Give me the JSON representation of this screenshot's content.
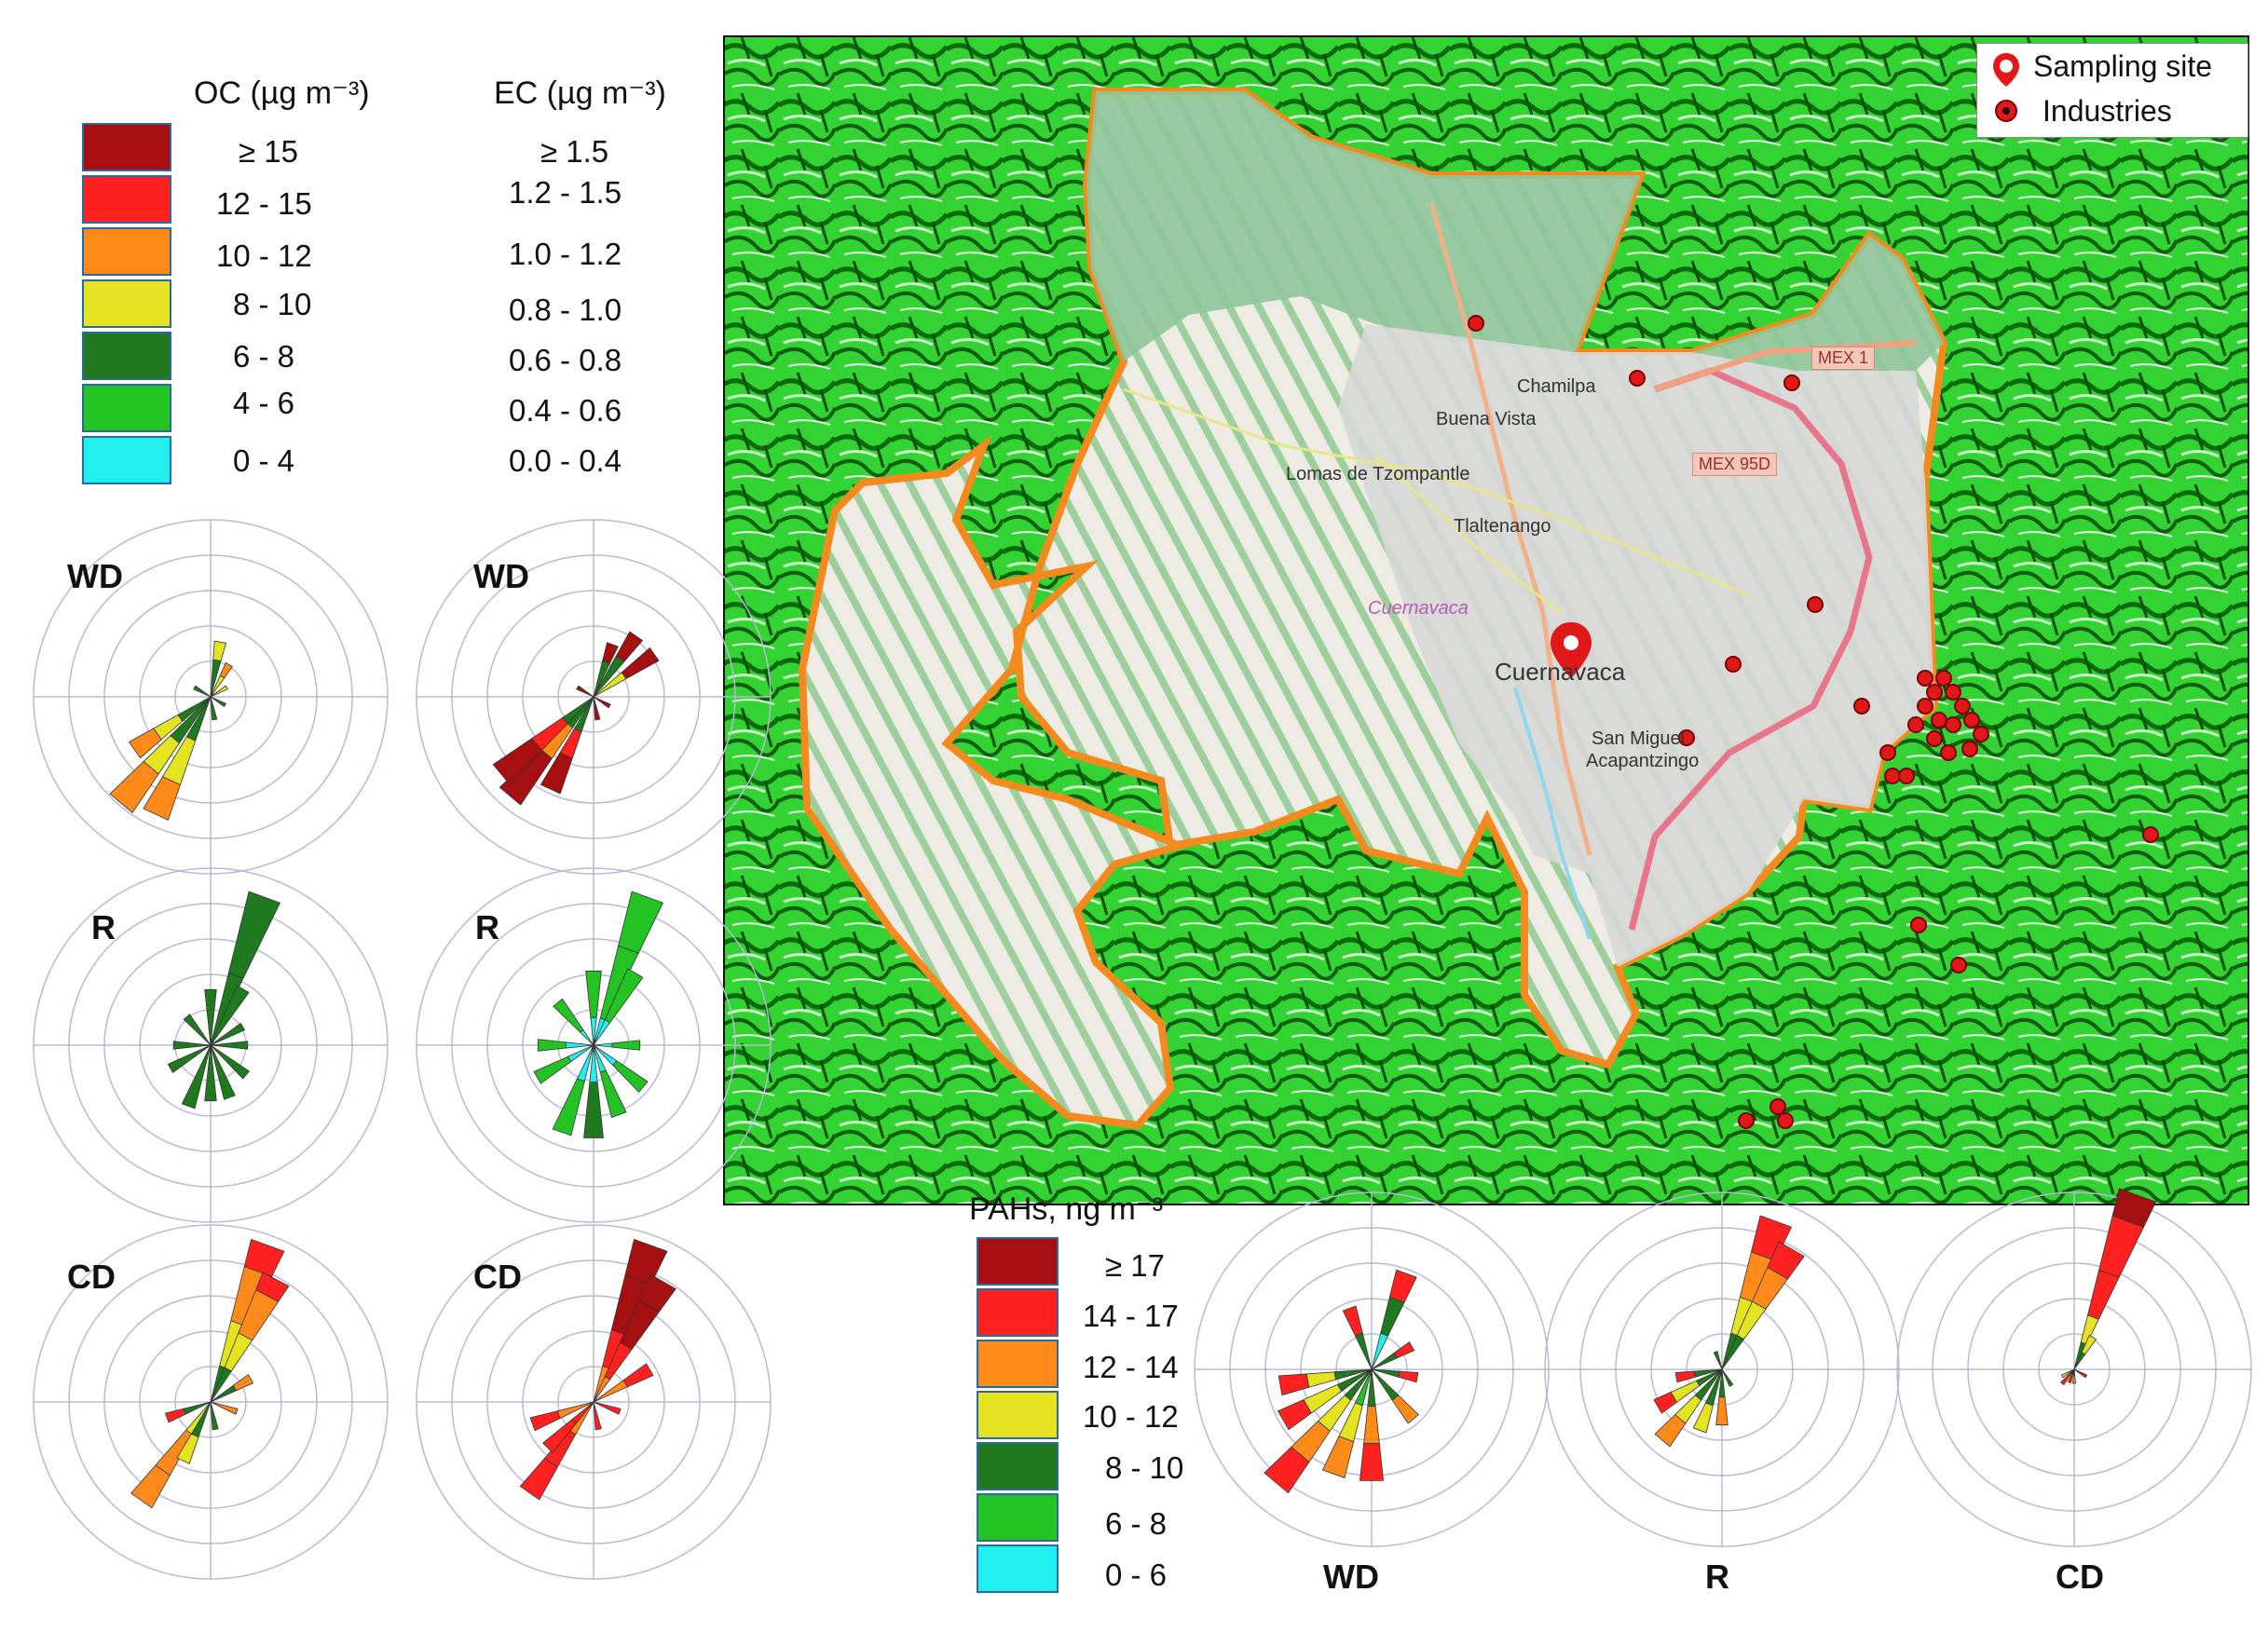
{
  "oc_legend": {
    "title": "OC (µg m⁻³)",
    "items": [
      {
        "label": "≥ 15",
        "color": "#a50f0f"
      },
      {
        "label": "12 - 15",
        "color": "#ff2020"
      },
      {
        "label": "10 - 12",
        "color": "#ff8a1a"
      },
      {
        "label": "8 - 10",
        "color": "#e3e321"
      },
      {
        "label": "6 - 8",
        "color": "#1f7a1f"
      },
      {
        "label": "4 - 6",
        "color": "#22c322"
      },
      {
        "label": "0 - 4",
        "color": "#22f0f0"
      }
    ]
  },
  "ec_legend": {
    "title": "EC (µg m⁻³)",
    "items": [
      "≥ 1.5",
      "1.2 - 1.5",
      "1.0 - 1.2",
      "0.8 - 1.0",
      "0.6 - 0.8",
      "0.4 - 0.6",
      "0.0 - 0.4"
    ]
  },
  "pah_legend": {
    "title": "PAHs, ng m⁻³",
    "items": [
      {
        "label": "≥ 17",
        "color": "#a50f0f"
      },
      {
        "label": "14 - 17",
        "color": "#ff2020"
      },
      {
        "label": "12 - 14",
        "color": "#ff8a1a"
      },
      {
        "label": "10 - 12",
        "color": "#e3e321"
      },
      {
        "label": "8 - 10",
        "color": "#1f7a1f"
      },
      {
        "label": "6 - 8",
        "color": "#22c322"
      },
      {
        "label": "0 - 6",
        "color": "#22f0f0"
      }
    ]
  },
  "map": {
    "legend": {
      "sampling_site": "Sampling site",
      "industries": "Industries"
    },
    "places": [
      "Chamilpa",
      "Buena Vista",
      "Lomas de Tzompantle",
      "Tlaltenango",
      "Cuernavaca",
      "Cuernavaca",
      "San Miguel",
      "Acapantzingo"
    ],
    "roads": [
      "MEX 1",
      "MEX 95D"
    ],
    "colors": {
      "terrain": "#2fcf2f",
      "boundary": "#f28a1e",
      "urban": "#d9d9d9",
      "road": "#e8768a"
    }
  },
  "rose_labels": {
    "oc_wd": "WD",
    "ec_wd": "WD",
    "oc_r": "R",
    "ec_r": "R",
    "oc_cd": "CD",
    "ec_cd": "CD",
    "pah_wd": "WD",
    "pah_r": "R",
    "pah_cd": "CD"
  }
}
